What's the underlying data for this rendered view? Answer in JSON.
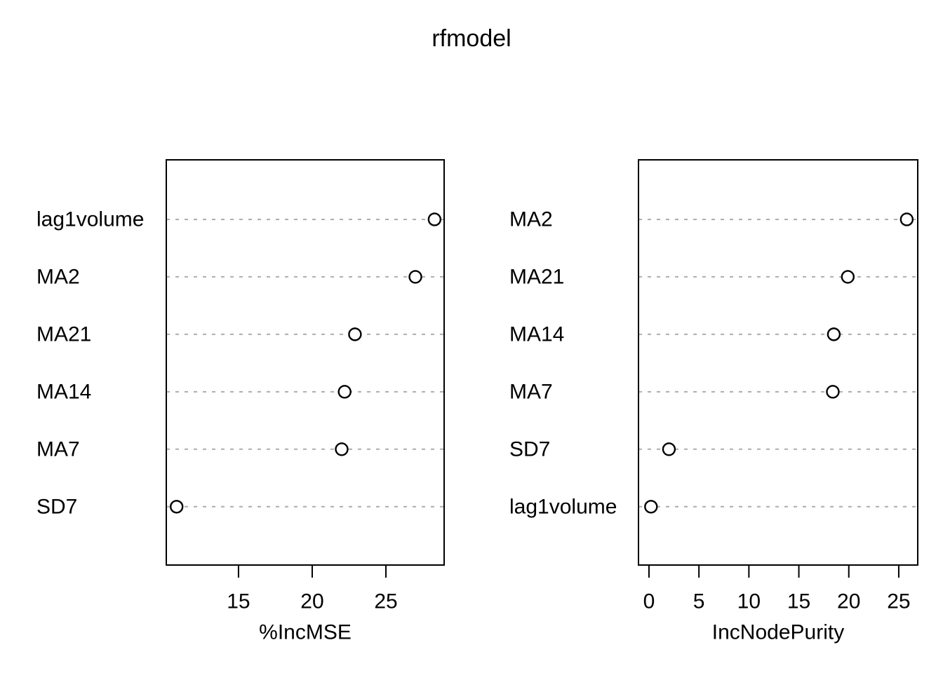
{
  "title": "rfmodel",
  "colors": {
    "background": "#ffffff",
    "text": "#000000",
    "grid_line": "#adadad",
    "point_stroke": "#000000",
    "point_fill": "#ffffff",
    "box_stroke": "#000000"
  },
  "chart_data": [
    {
      "type": "scatter",
      "subtype": "dot-chart",
      "xlabel": "%IncMSE",
      "categories": [
        "lag1volume",
        "MA2",
        "MA21",
        "MA14",
        "MA7",
        "SD7"
      ],
      "values": [
        28.3,
        27.0,
        22.9,
        22.2,
        22.0,
        10.8
      ],
      "xticks": [
        15,
        20,
        25
      ],
      "xlim": [
        10.1,
        28.95
      ],
      "grid": "horizontal dashed",
      "legend": "none",
      "point_style": "open-circle"
    },
    {
      "type": "scatter",
      "subtype": "dot-chart",
      "xlabel": "IncNodePurity",
      "categories": [
        "MA2",
        "MA21",
        "MA14",
        "MA7",
        "SD7",
        "lag1volume"
      ],
      "values": [
        25.8,
        19.9,
        18.5,
        18.4,
        2.0,
        0.2
      ],
      "xticks": [
        0,
        5,
        10,
        15,
        20,
        25
      ],
      "xlim": [
        -1.05,
        26.9
      ],
      "grid": "horizontal dashed",
      "legend": "none",
      "point_style": "open-circle"
    }
  ]
}
